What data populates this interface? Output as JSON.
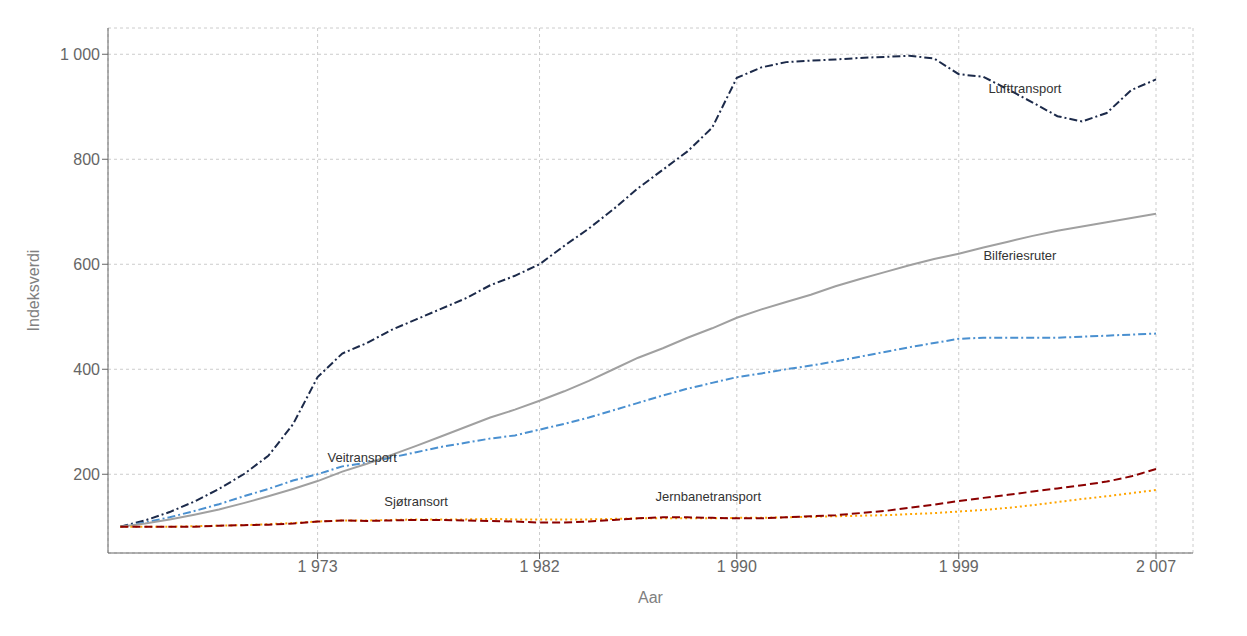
{
  "chart_data": {
    "type": "line",
    "xlabel": "Aar",
    "ylabel": "Indeksverdi",
    "x": [
      1965,
      1966,
      1967,
      1968,
      1969,
      1970,
      1971,
      1972,
      1973,
      1974,
      1975,
      1976,
      1977,
      1978,
      1979,
      1980,
      1981,
      1982,
      1983,
      1984,
      1985,
      1986,
      1987,
      1988,
      1989,
      1990,
      1991,
      1992,
      1993,
      1994,
      1995,
      1996,
      1997,
      1998,
      1999,
      2000,
      2001,
      2002,
      2003,
      2004,
      2005,
      2006,
      2007
    ],
    "series": [
      {
        "name": "Lufttransport",
        "color": "#1c2a4a",
        "line_style": "dashdot",
        "values": [
          100,
          112,
          128,
          148,
          172,
          200,
          235,
          295,
          385,
          430,
          450,
          475,
          495,
          515,
          535,
          560,
          578,
          600,
          635,
          668,
          705,
          745,
          780,
          815,
          860,
          955,
          975,
          985,
          988,
          990,
          993,
          995,
          997,
          992,
          962,
          957,
          933,
          908,
          882,
          872,
          888,
          932,
          952
        ]
      },
      {
        "name": "Veitransport",
        "color": "#4a90d0",
        "line_style": "dashdot",
        "values": [
          100,
          108,
          118,
          130,
          143,
          158,
          172,
          188,
          200,
          215,
          222,
          232,
          242,
          252,
          260,
          268,
          274,
          285,
          296,
          308,
          322,
          336,
          350,
          363,
          374,
          385,
          392,
          400,
          407,
          415,
          424,
          433,
          442,
          450,
          458,
          460,
          460,
          460,
          460,
          462,
          464,
          466,
          468
        ]
      },
      {
        "name": "Bilferiesruter",
        "color": "#a0a0a0",
        "line_style": "solid",
        "values": [
          100,
          106,
          114,
          123,
          133,
          145,
          158,
          172,
          187,
          205,
          220,
          237,
          254,
          272,
          290,
          308,
          323,
          340,
          358,
          378,
          400,
          422,
          440,
          460,
          478,
          498,
          514,
          528,
          542,
          558,
          572,
          585,
          598,
          610,
          620,
          632,
          643,
          654,
          664,
          672,
          680,
          688,
          696
        ]
      },
      {
        "name": "Sjøtransort",
        "color": "#ffa500",
        "line_style": "dotted",
        "values": [
          100,
          100,
          100,
          101,
          102,
          103,
          105,
          107,
          110,
          112,
          112,
          113,
          114,
          114,
          114,
          115,
          114,
          114,
          114,
          114,
          115,
          116,
          116,
          116,
          116,
          117,
          117,
          118,
          119,
          120,
          121,
          122,
          124,
          126,
          129,
          132,
          136,
          141,
          147,
          153,
          158,
          164,
          170
        ]
      },
      {
        "name": "Jernbanetransport",
        "color": "#8b0000",
        "line_style": "dashed",
        "values": [
          100,
          100,
          100,
          100,
          102,
          103,
          104,
          106,
          110,
          112,
          111,
          112,
          113,
          113,
          112,
          111,
          110,
          108,
          108,
          110,
          113,
          116,
          118,
          118,
          117,
          116,
          116,
          118,
          120,
          122,
          126,
          130,
          136,
          142,
          149,
          155,
          161,
          167,
          173,
          179,
          186,
          196,
          210
        ]
      }
    ],
    "xlim": [
      1964.5,
      2008.5
    ],
    "xticks": [
      {
        "value": 1973,
        "label": "1 973"
      },
      {
        "value": 1982,
        "label": "1 982"
      },
      {
        "value": 1990,
        "label": "1 990"
      },
      {
        "value": 1999,
        "label": "1 999"
      },
      {
        "value": 2007,
        "label": "2 007"
      }
    ],
    "ylim": [
      50,
      1050
    ],
    "yticks": [
      200,
      400,
      600,
      800,
      {
        "value": 1000,
        "label": "1 000"
      }
    ],
    "grid": true,
    "annotations": [
      {
        "text": "Lufttransport",
        "x": 2000.0,
        "y": 935
      },
      {
        "text": "Veitransport",
        "x": 1973.2,
        "y": 232
      },
      {
        "text": "Bilferiesruter",
        "x": 1999.8,
        "y": 617
      },
      {
        "text": "Sjøtransort",
        "x": 1975.5,
        "y": 148
      },
      {
        "text": "Jernbanetransport",
        "x": 1986.5,
        "y": 158
      }
    ]
  }
}
